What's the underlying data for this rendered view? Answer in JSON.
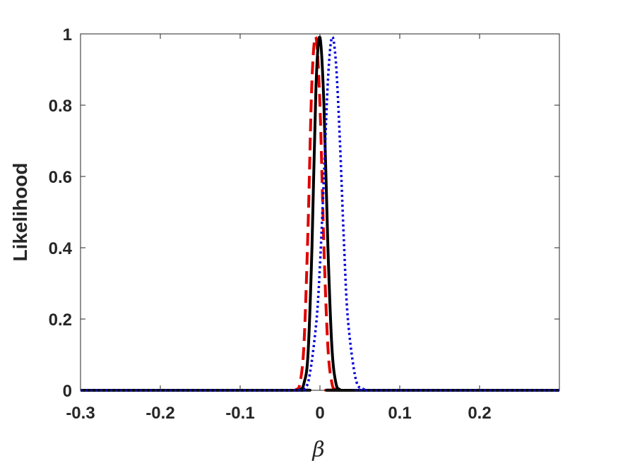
{
  "chart_data": {
    "type": "line",
    "xlabel": "β",
    "ylabel": "Likelihood",
    "xlim": [
      -0.3,
      0.3
    ],
    "ylim": [
      0,
      1
    ],
    "x_ticks": [
      -0.3,
      -0.2,
      -0.1,
      0,
      0.1,
      0.2
    ],
    "x_tick_labels": [
      "-0.3",
      "-0.2",
      "-0.1",
      "0",
      "0.1",
      "0.2"
    ],
    "y_ticks": [
      0,
      0.2,
      0.4,
      0.6,
      0.8,
      1
    ],
    "y_tick_labels": [
      "0",
      "0.2",
      "0.4",
      "0.6",
      "0.8",
      "1"
    ],
    "grid": false,
    "series": [
      {
        "style": "dashed",
        "color": "#e00000",
        "x": [
          -0.3,
          -0.04,
          -0.03,
          -0.025,
          -0.02,
          -0.015,
          -0.01,
          -0.005,
          0.0,
          0.005,
          0.01,
          0.015,
          0.02,
          0.03,
          0.3
        ],
        "y": [
          0,
          0,
          0.002,
          0.02,
          0.13,
          0.45,
          0.87,
          0.99,
          0.8,
          0.4,
          0.12,
          0.02,
          0.002,
          0,
          0
        ]
      },
      {
        "style": "solid",
        "color": "#000000",
        "x": [
          -0.3,
          -0.035,
          -0.025,
          -0.02,
          -0.015,
          -0.01,
          -0.005,
          0.0,
          0.005,
          0.01,
          0.015,
          0.02,
          0.025,
          0.03,
          0.3
        ],
        "y": [
          0,
          0,
          0.002,
          0.02,
          0.1,
          0.4,
          0.85,
          0.99,
          0.8,
          0.4,
          0.12,
          0.02,
          0.002,
          0,
          0
        ]
      },
      {
        "style": "dotted",
        "color": "#0000dd",
        "x": [
          -0.3,
          -0.04,
          -0.025,
          -0.015,
          -0.005,
          0.0,
          0.005,
          0.01,
          0.015,
          0.02,
          0.025,
          0.03,
          0.035,
          0.045,
          0.055,
          0.065,
          0.3
        ],
        "y": [
          0,
          0,
          0.002,
          0.02,
          0.18,
          0.35,
          0.6,
          0.87,
          0.99,
          0.92,
          0.7,
          0.42,
          0.2,
          0.03,
          0.003,
          0,
          0
        ]
      }
    ]
  }
}
